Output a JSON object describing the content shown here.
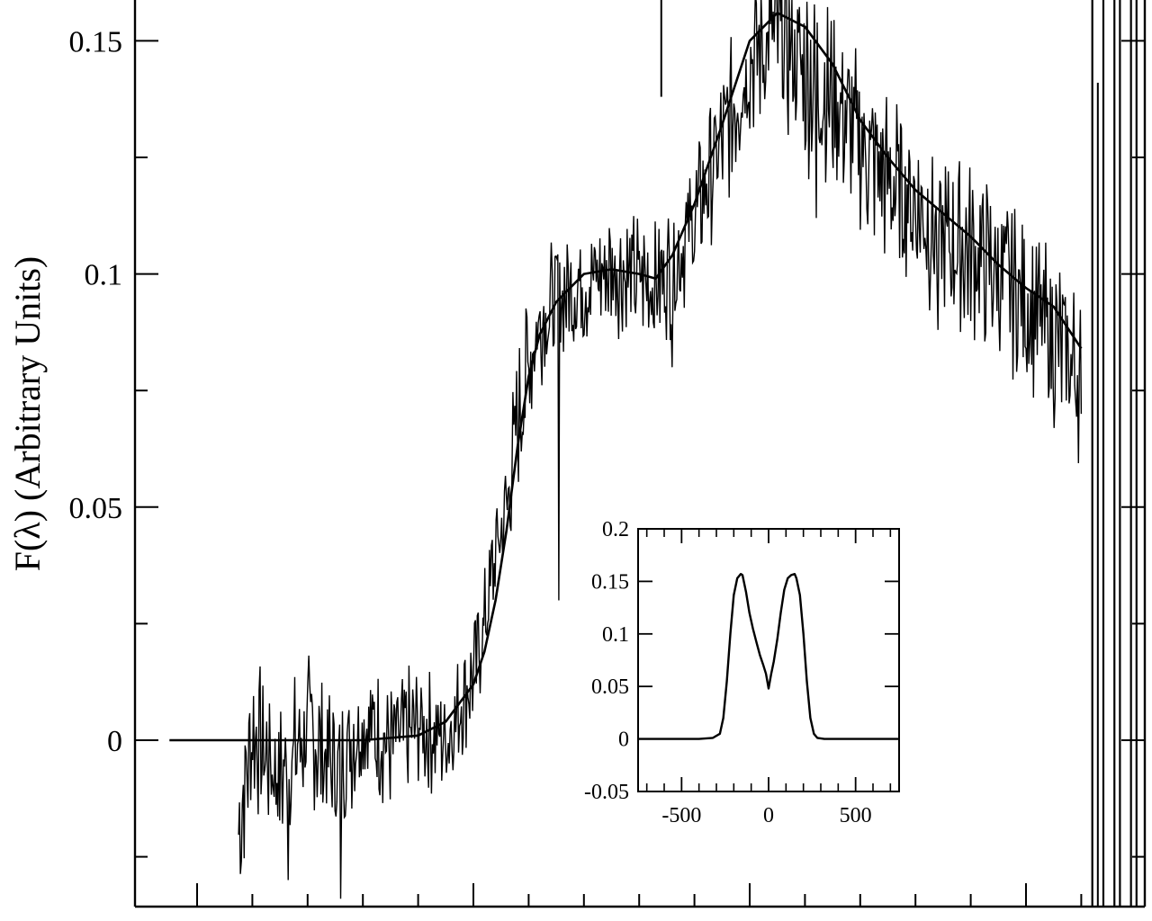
{
  "chart_data": [
    {
      "id": "main",
      "type": "line",
      "title": "",
      "xlabel": "",
      "ylabel": "F(λ) (Arbitrary Units)",
      "ylim": [
        -0.035,
        0.161
      ],
      "xlim": [
        -1.0,
        17.0
      ],
      "yticks": [
        0,
        0.05,
        0.1,
        0.15
      ],
      "ytick_labels": [
        "0",
        "0.05",
        "0.1",
        "0.15"
      ],
      "ytick_minor": [
        -0.025,
        0.025,
        0.075,
        0.125
      ],
      "xtick_major": [
        0,
        5,
        10,
        15
      ],
      "xtick_minor": [
        1,
        2,
        3,
        4,
        6,
        7,
        8,
        9,
        11,
        12,
        13,
        14,
        16
      ],
      "grid": false,
      "marker_x": 8.4,
      "marker_y_range": [
        0.138,
        0.161
      ],
      "edge_lines_x": [
        16.2,
        16.4,
        16.6,
        16.7,
        16.9,
        17.0
      ],
      "series": [
        {
          "role": "smooth-fit",
          "x": [
            -0.5,
            0.0,
            1.0,
            2.0,
            3.0,
            4.0,
            4.5,
            5.0,
            5.2,
            5.4,
            5.6,
            5.8,
            6.0,
            6.2,
            6.5,
            7.0,
            7.5,
            8.0,
            8.3,
            8.6,
            9.0,
            9.5,
            10.0,
            10.5,
            11.0,
            11.5,
            12.0,
            12.5,
            13.0,
            13.5,
            14.0,
            14.5,
            15.0,
            15.5,
            16.0
          ],
          "y": [
            0.0,
            0.0,
            0.0,
            0.0,
            0.0,
            0.001,
            0.004,
            0.012,
            0.019,
            0.03,
            0.045,
            0.063,
            0.078,
            0.087,
            0.094,
            0.1,
            0.101,
            0.1,
            0.099,
            0.104,
            0.115,
            0.132,
            0.15,
            0.156,
            0.153,
            0.145,
            0.133,
            0.125,
            0.118,
            0.113,
            0.108,
            0.102,
            0.097,
            0.093,
            0.084
          ]
        },
        {
          "role": "noisy-profile",
          "x": [
            0.75,
            1.0,
            1.5,
            2.0,
            2.5,
            3.0,
            3.5,
            4.0,
            4.5,
            5.0,
            5.2,
            5.4,
            5.6,
            5.8,
            6.0,
            6.2,
            6.5,
            7.0,
            7.5,
            8.0,
            8.3,
            8.6,
            9.0,
            9.5,
            10.0,
            10.5,
            11.0,
            11.5,
            12.0,
            12.5,
            13.0,
            13.5,
            14.0,
            14.5,
            15.0,
            15.5,
            16.0
          ],
          "y": [
            -0.02,
            0.002,
            -0.008,
            0.002,
            -0.006,
            0.004,
            -0.001,
            0.003,
            0.0,
            0.014,
            0.025,
            0.04,
            0.05,
            0.068,
            0.081,
            0.09,
            0.095,
            0.098,
            0.101,
            0.099,
            0.098,
            0.101,
            0.112,
            0.128,
            0.146,
            0.152,
            0.143,
            0.138,
            0.128,
            0.12,
            0.115,
            0.107,
            0.105,
            0.1,
            0.094,
            0.086,
            0.078
          ],
          "noise_amplitude": [
            0.014,
            0.014,
            0.014,
            0.014,
            0.014,
            0.012,
            0.012,
            0.012,
            0.01,
            0.01,
            0.01,
            0.012,
            0.012,
            0.014,
            0.014,
            0.012,
            0.012,
            0.012,
            0.012,
            0.012,
            0.012,
            0.012,
            0.012,
            0.014,
            0.014,
            0.016,
            0.018,
            0.016,
            0.016,
            0.016,
            0.016,
            0.016,
            0.016,
            0.016,
            0.016,
            0.016,
            0.016
          ],
          "spikes": [
            {
              "x": 2.6,
              "y": -0.034
            },
            {
              "x": 1.65,
              "y": -0.03
            },
            {
              "x": 6.55,
              "y": 0.03
            },
            {
              "x": 8.6,
              "y": 0.08
            },
            {
              "x": 11.2,
              "y": 0.112
            },
            {
              "x": 13.4,
              "y": 0.088
            },
            {
              "x": 16.2,
              "y": 0.065
            },
            {
              "x": 16.05,
              "y": 0.07
            }
          ]
        }
      ]
    },
    {
      "id": "inset",
      "type": "line",
      "title": "",
      "xlabel": "",
      "ylabel": "",
      "xlim": [
        -750,
        750
      ],
      "ylim": [
        -0.05,
        0.2
      ],
      "xticks": [
        -500,
        0,
        500
      ],
      "xtick_labels": [
        "-500",
        "0",
        "500"
      ],
      "xtick_minor": [
        -700,
        -600,
        -400,
        -300,
        -200,
        -100,
        100,
        200,
        300,
        400,
        600,
        700
      ],
      "yticks": [
        -0.05,
        0,
        0.05,
        0.1,
        0.15,
        0.2
      ],
      "ytick_labels": [
        "-0.05",
        "0",
        "0.05",
        "0.1",
        "0.15",
        "0.2"
      ],
      "grid": false,
      "series": [
        {
          "x": [
            -750,
            -400,
            -320,
            -280,
            -260,
            -240,
            -220,
            -200,
            -180,
            -160,
            -150,
            -130,
            -110,
            -90,
            -70,
            -50,
            -30,
            -15,
            0,
            15,
            30,
            50,
            70,
            90,
            110,
            130,
            150,
            160,
            180,
            200,
            220,
            240,
            260,
            280,
            320,
            400,
            750
          ],
          "y": [
            0,
            0,
            0.001,
            0.005,
            0.02,
            0.055,
            0.1,
            0.137,
            0.153,
            0.157,
            0.156,
            0.14,
            0.12,
            0.105,
            0.092,
            0.08,
            0.07,
            0.062,
            0.048,
            0.062,
            0.074,
            0.095,
            0.12,
            0.142,
            0.153,
            0.156,
            0.157,
            0.153,
            0.137,
            0.1,
            0.055,
            0.02,
            0.005,
            0.001,
            0,
            0,
            0
          ]
        }
      ]
    }
  ]
}
